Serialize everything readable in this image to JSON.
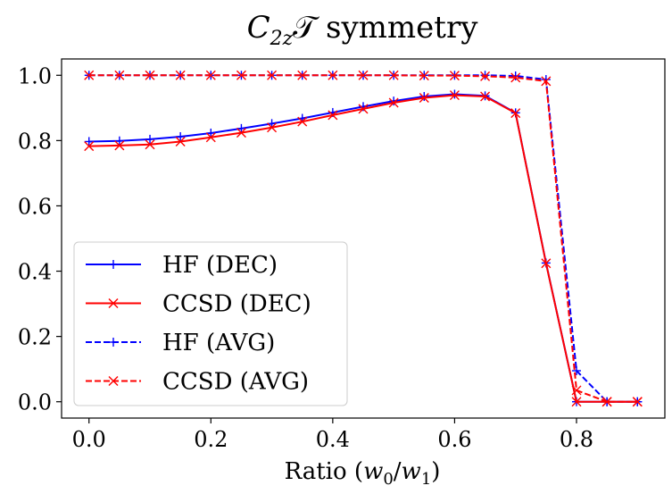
{
  "chart_data": {
    "type": "line",
    "title_main": "C",
    "title_sub": "2z",
    "title_script": "𝒯",
    "title_rest": " symmetry",
    "xlabel_prefix": "Ratio (",
    "xlabel_w0": "w",
    "xlabel_w0_sub": "0",
    "xlabel_slash": "/",
    "xlabel_w1": "w",
    "xlabel_w1_sub": "1",
    "xlabel_suffix": ")",
    "ylabel": "",
    "xlim": [
      -0.045,
      0.945
    ],
    "ylim": [
      -0.05,
      1.05
    ],
    "xticks": [
      0.0,
      0.2,
      0.4,
      0.6,
      0.8
    ],
    "xtick_labels": [
      "0.0",
      "0.2",
      "0.4",
      "0.6",
      "0.8"
    ],
    "yticks": [
      0.0,
      0.2,
      0.4,
      0.6,
      0.8,
      1.0
    ],
    "ytick_labels": [
      "0.0",
      "0.2",
      "0.4",
      "0.6",
      "0.8",
      "1.0"
    ],
    "grid": false,
    "legend_position": "lower-left",
    "x": [
      0.0,
      0.05,
      0.1,
      0.15,
      0.2,
      0.25,
      0.3,
      0.35,
      0.4,
      0.45,
      0.5,
      0.55,
      0.6,
      0.65,
      0.7,
      0.75,
      0.8,
      0.85,
      0.9
    ],
    "series": [
      {
        "name": "HF (DEC)",
        "color": "#0000ff",
        "linestyle": "solid",
        "marker": "plus",
        "values": [
          0.797,
          0.799,
          0.804,
          0.812,
          0.823,
          0.837,
          0.852,
          0.868,
          0.886,
          0.904,
          0.921,
          0.935,
          0.942,
          0.937,
          0.885,
          0.425,
          0.0,
          0.0,
          0.0
        ]
      },
      {
        "name": "CCSD (DEC)",
        "color": "#ff0000",
        "linestyle": "solid",
        "marker": "x",
        "values": [
          0.783,
          0.785,
          0.788,
          0.797,
          0.81,
          0.824,
          0.84,
          0.858,
          0.878,
          0.897,
          0.916,
          0.931,
          0.939,
          0.935,
          0.884,
          0.424,
          0.0,
          0.0,
          0.0
        ]
      },
      {
        "name": "HF (AVG)",
        "color": "#0000ff",
        "linestyle": "dashed",
        "marker": "plus",
        "values": [
          1.0,
          1.0,
          1.0,
          1.0,
          1.0,
          1.0,
          1.0,
          1.0,
          1.0,
          1.0,
          1.0,
          1.0,
          1.0,
          1.0,
          0.998,
          0.987,
          0.095,
          0.0,
          0.0
        ]
      },
      {
        "name": "CCSD (AVG)",
        "color": "#ff0000",
        "linestyle": "dashed",
        "marker": "x",
        "values": [
          1.0,
          1.0,
          1.0,
          1.0,
          1.0,
          1.0,
          1.0,
          1.0,
          1.0,
          1.0,
          1.0,
          0.999,
          0.999,
          0.997,
          0.993,
          0.982,
          0.035,
          0.0,
          0.0
        ]
      }
    ]
  }
}
